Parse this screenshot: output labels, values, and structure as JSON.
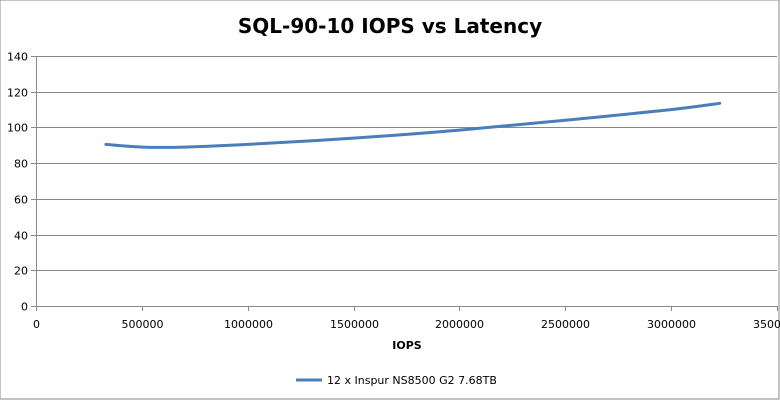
{
  "chart_data": {
    "type": "line",
    "title": "SQL-90-10 IOPS vs Latency",
    "xlabel": "IOPS",
    "ylabel": "",
    "xlim": [
      0,
      3500000
    ],
    "ylim": [
      0,
      140
    ],
    "x_ticks": [
      0,
      500000,
      1000000,
      1500000,
      2000000,
      2500000,
      3000000,
      3500000
    ],
    "y_ticks": [
      0,
      20,
      40,
      60,
      80,
      100,
      120,
      140
    ],
    "x_tick_labels": [
      "0",
      "500000",
      "1000000",
      "1500000",
      "2000000",
      "2500000",
      "3000000",
      "3500000"
    ],
    "y_tick_labels": [
      "0",
      "20",
      "40",
      "60",
      "80",
      "100",
      "120",
      "140"
    ],
    "grid": true,
    "legend_position": "bottom",
    "series": [
      {
        "name": "12 x Inspur NS8500 G2 7.68TB",
        "color": "#4a7ebb",
        "x": [
          330000,
          500000,
          700000,
          1000000,
          1500000,
          2000000,
          2500000,
          3000000,
          3230000
        ],
        "y": [
          90.5,
          89.0,
          89.0,
          90.5,
          94.0,
          98.5,
          104.0,
          110.0,
          113.5
        ]
      }
    ]
  }
}
